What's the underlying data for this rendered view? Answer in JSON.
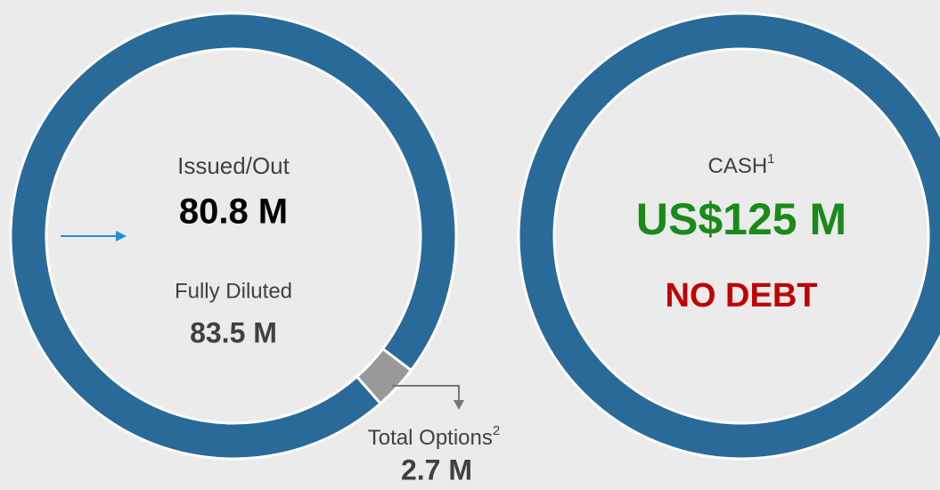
{
  "chart_data": {
    "type": "donut",
    "categories": [
      "Issued/Out",
      "Total Options"
    ],
    "values": [
      80.8,
      2.7
    ],
    "value_labels": [
      "80.8 M",
      "2.7 M"
    ],
    "colors": [
      "#2a6a99",
      "#999999"
    ],
    "total_label": "Fully Diluted",
    "total_value_label": "83.5 M",
    "options_note": "2"
  },
  "cash_panel": {
    "label": "CASH",
    "note": "1",
    "amount": "US$125 M",
    "debt": "NO DEBT",
    "ring_color": "#2a6a99"
  }
}
